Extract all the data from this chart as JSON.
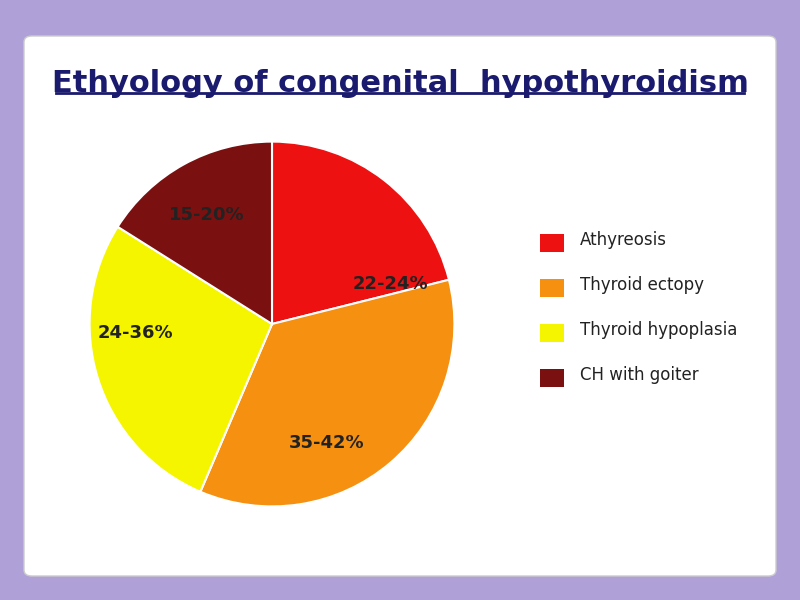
{
  "title": "Ethyology of congenital  hypothyroidism",
  "title_color": "#1a1a6e",
  "title_fontsize": 22,
  "slices": [
    23,
    38.5,
    30,
    17.5
  ],
  "labels": [
    "22-24%",
    "35-42%",
    "24-36%",
    "15-20%"
  ],
  "legend_labels": [
    "Athyreosis",
    "Thyroid ectopy",
    "Thyroid hypoplasia",
    "CH with goiter"
  ],
  "colors": [
    "#ee1111",
    "#f59010",
    "#f5f500",
    "#7a1010"
  ],
  "startangle": 90,
  "bg_outer": "#b0a0d8",
  "bg_inner": "#ffffff"
}
